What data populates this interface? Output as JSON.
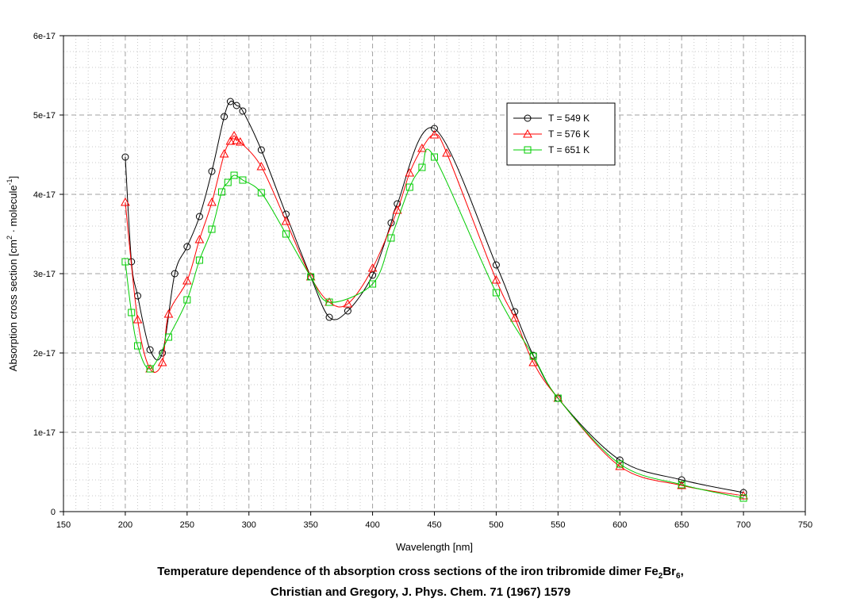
{
  "chart_data": {
    "type": "line",
    "xlabel": "Wavelength [nm]",
    "ylabel_parts": [
      "Absorption cross section [cm",
      "2",
      " · molecule",
      "-1",
      "]"
    ],
    "xlim": [
      150,
      750
    ],
    "ylim": [
      0,
      6e-17
    ],
    "x_ticks": [
      "150",
      "200",
      "250",
      "300",
      "350",
      "400",
      "450",
      "500",
      "550",
      "600",
      "650",
      "700",
      "750"
    ],
    "y_ticks": [
      "0",
      "1e-17",
      "2e-17",
      "3e-17",
      "4e-17",
      "5e-17",
      "6e-17"
    ],
    "grid": true,
    "legend_position": "top-right",
    "series": [
      {
        "name": "T = 549 K",
        "color": "#000000",
        "marker": "circle",
        "x": [
          200,
          205,
          210,
          220,
          230,
          240,
          250,
          260,
          270,
          280,
          285,
          290,
          295,
          310,
          330,
          350,
          365,
          380,
          400,
          415,
          420,
          450,
          500,
          515,
          530,
          550,
          600,
          650,
          700
        ],
        "y": [
          4.47,
          3.15,
          2.72,
          2.04,
          2.0,
          3.0,
          3.34,
          3.72,
          4.29,
          4.98,
          5.17,
          5.12,
          5.05,
          4.56,
          3.75,
          2.96,
          2.45,
          2.53,
          2.98,
          3.64,
          3.88,
          4.83,
          3.11,
          2.52,
          1.97,
          1.43,
          0.65,
          0.4,
          0.24
        ]
      },
      {
        "name": "T = 576 K",
        "color": "#ff0000",
        "marker": "triangle",
        "x": [
          200,
          210,
          220,
          230,
          235,
          250,
          260,
          270,
          280,
          285,
          288,
          290,
          293,
          310,
          330,
          350,
          365,
          380,
          400,
          420,
          430,
          440,
          450,
          460,
          500,
          515,
          530,
          550,
          600,
          650,
          700
        ],
        "y": [
          3.9,
          2.42,
          1.8,
          1.88,
          2.49,
          2.91,
          3.43,
          3.9,
          4.51,
          4.67,
          4.74,
          4.68,
          4.66,
          4.35,
          3.66,
          2.96,
          2.64,
          2.62,
          3.07,
          3.8,
          4.27,
          4.58,
          4.75,
          4.52,
          2.92,
          2.44,
          1.88,
          1.43,
          0.57,
          0.33,
          0.2
        ]
      },
      {
        "name": "T = 651 K",
        "color": "#00cc00",
        "marker": "square",
        "x": [
          200,
          205,
          210,
          220,
          235,
          250,
          260,
          270,
          278,
          283,
          288,
          295,
          310,
          330,
          350,
          365,
          400,
          415,
          430,
          440,
          450,
          500,
          530,
          550,
          600,
          650,
          700
        ],
        "y": [
          3.15,
          2.51,
          2.09,
          1.8,
          2.2,
          2.67,
          3.17,
          3.56,
          4.03,
          4.15,
          4.24,
          4.18,
          4.02,
          3.5,
          2.96,
          2.64,
          2.87,
          3.45,
          4.09,
          4.34,
          4.47,
          2.76,
          1.96,
          1.43,
          0.6,
          0.34,
          0.17
        ]
      }
    ]
  },
  "caption": {
    "line1_text": "Temperature dependence of th absorption cross sections of the iron tribromide dimer Fe",
    "line1_sub1": "2",
    "line1_mid": "Br",
    "line1_sub2": "6",
    "line1_end": ",",
    "line2": "Christian and Gregory, J. Phys. Chem. 71 (1967) 1579"
  }
}
